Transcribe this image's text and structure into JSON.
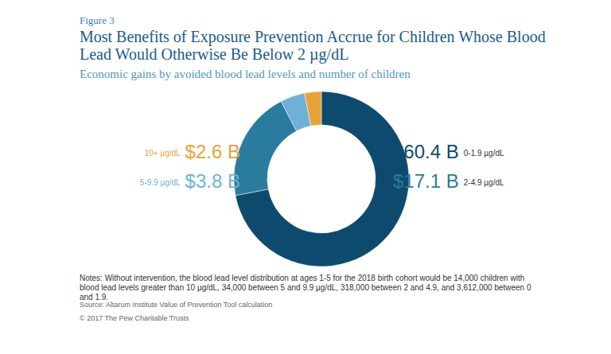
{
  "chart_data": {
    "type": "donut",
    "figure_label": "Figure 3",
    "title": "Most Benefits of Exposure Prevention Accrue for Children Whose Blood Lead Would Otherwise Be Below 2 µg/dL",
    "subtitle": "Economic gains by avoided blood lead levels and number of children",
    "categories": [
      "0-1.9 µg/dL",
      "2-4.9 µg/dL",
      "5-9.9 µg/dL",
      "10+ µg/dL"
    ],
    "values": [
      60.4,
      17.1,
      3.8,
      2.6
    ],
    "value_labels": [
      "$60.4 B",
      "$17.1 B",
      "$3.8 B",
      "$2.6 B"
    ],
    "colors": [
      "#0e4a6e",
      "#2a7c9e",
      "#6fb0d8",
      "#e8a23a"
    ],
    "data_labels": true,
    "notes": "Notes: Without intervention, the blood lead level distribution at ages 1-5 for the 2018 birth cohort would be 14,000 children with blood lead levels greater than 10 µg/dL, 34,000 between 5 and 9.9 µg/dL, 318,000 between 2 and 4.9, and 3,612,000 between 0 and 1.9.",
    "source": "Source: Altarum Institute Value of Prevention Tool calculation",
    "copyright": "© 2017 The Pew Charitable Trusts"
  }
}
